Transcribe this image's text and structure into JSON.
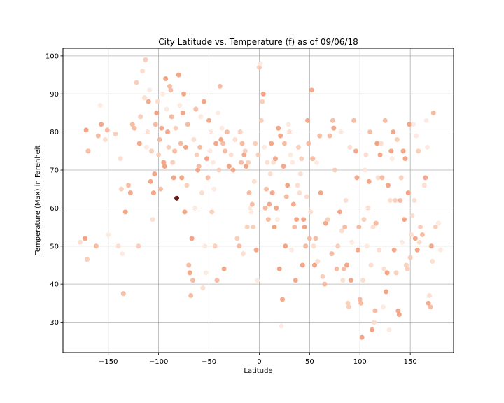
{
  "chart_data": {
    "type": "scatter",
    "title": "City Latitude vs. Temperature (f) as of 09/06/18",
    "xlabel": "Latitude",
    "ylabel": "Temperature (Max) in Farenheit",
    "xlim": [
      -195,
      193
    ],
    "ylim": [
      22,
      102
    ],
    "xticks": [
      -150,
      -100,
      -50,
      0,
      50,
      100,
      150
    ],
    "yticks": [
      30,
      40,
      50,
      60,
      70,
      80,
      90,
      100
    ],
    "grid": true,
    "highlight_point": {
      "x": -82,
      "y": 62.6,
      "color": "#6b1a1a"
    },
    "point_colors": [
      "#f4a07f",
      "#f6b59a",
      "#f8cbb5",
      "#fbdccb",
      "#fde8dd",
      "#f39b79"
    ],
    "points": [
      [
        -178,
        51
      ],
      [
        -173,
        52
      ],
      [
        -172,
        80.5
      ],
      [
        -171,
        46.5
      ],
      [
        -170,
        75
      ],
      [
        -162,
        50
      ],
      [
        -160,
        79
      ],
      [
        -158,
        87
      ],
      [
        -157,
        82
      ],
      [
        -153,
        78
      ],
      [
        -151,
        80.5
      ],
      [
        -150,
        53
      ],
      [
        -143,
        79.5
      ],
      [
        -140,
        50
      ],
      [
        -138,
        73
      ],
      [
        -137,
        65
      ],
      [
        -136,
        48
      ],
      [
        -135,
        37.5
      ],
      [
        -133,
        59
      ],
      [
        -130,
        66
      ],
      [
        -128,
        64
      ],
      [
        -126,
        82
      ],
      [
        -124,
        81
      ],
      [
        -122,
        93
      ],
      [
        -120,
        50
      ],
      [
        -119,
        77
      ],
      [
        -118,
        84
      ],
      [
        -116,
        96
      ],
      [
        -114,
        89
      ],
      [
        -113,
        99
      ],
      [
        -112,
        76
      ],
      [
        -111,
        80
      ],
      [
        -110,
        88
      ],
      [
        -109,
        91
      ],
      [
        -108,
        67
      ],
      [
        -107,
        75
      ],
      [
        -106,
        57
      ],
      [
        -105,
        64
      ],
      [
        -104,
        69
      ],
      [
        -103,
        82
      ],
      [
        -102,
        85
      ],
      [
        -101,
        88
      ],
      [
        -100,
        74
      ],
      [
        -99,
        78
      ],
      [
        -98,
        65
      ],
      [
        -97,
        81
      ],
      [
        -96,
        90
      ],
      [
        -95,
        72
      ],
      [
        -94,
        71
      ],
      [
        -93,
        94
      ],
      [
        -92,
        86
      ],
      [
        -91,
        80
      ],
      [
        -90,
        76
      ],
      [
        -89,
        92
      ],
      [
        -88,
        91
      ],
      [
        -87,
        84
      ],
      [
        -86,
        72
      ],
      [
        -85,
        68
      ],
      [
        -84,
        75
      ],
      [
        -83,
        81
      ],
      [
        -80,
        95
      ],
      [
        -79,
        87
      ],
      [
        -78,
        77
      ],
      [
        -77,
        68
      ],
      [
        -76,
        85
      ],
      [
        -75,
        90
      ],
      [
        -74,
        59
      ],
      [
        -73,
        76
      ],
      [
        -72,
        66
      ],
      [
        -71,
        82
      ],
      [
        -70,
        45
      ],
      [
        -69,
        43
      ],
      [
        -68,
        37
      ],
      [
        -67,
        52
      ],
      [
        -66,
        41
      ],
      [
        -65,
        78
      ],
      [
        -64,
        60
      ],
      [
        -63,
        86
      ],
      [
        -62,
        74
      ],
      [
        -61,
        70
      ],
      [
        -60,
        71
      ],
      [
        -59,
        76
      ],
      [
        -58,
        84
      ],
      [
        -57,
        64
      ],
      [
        -56,
        39
      ],
      [
        -55,
        88
      ],
      [
        -54,
        50
      ],
      [
        -53,
        43
      ],
      [
        -52,
        73
      ],
      [
        -51,
        68
      ],
      [
        -50,
        83
      ],
      [
        -49,
        75
      ],
      [
        -48,
        80
      ],
      [
        -47,
        59
      ],
      [
        -46,
        72
      ],
      [
        -45,
        65
      ],
      [
        -44,
        50
      ],
      [
        -43,
        77
      ],
      [
        -42,
        41
      ],
      [
        -41,
        85
      ],
      [
        -40,
        70
      ],
      [
        -39,
        92
      ],
      [
        -38,
        78
      ],
      [
        -37,
        81
      ],
      [
        -36,
        77
      ],
      [
        -35,
        44
      ],
      [
        -34,
        75
      ],
      [
        -32,
        80
      ],
      [
        -30,
        71
      ],
      [
        -28,
        74
      ],
      [
        -26,
        70
      ],
      [
        -24,
        78
      ],
      [
        -22,
        52
      ],
      [
        -20,
        50
      ],
      [
        -19,
        80
      ],
      [
        -18,
        72
      ],
      [
        -17,
        77
      ],
      [
        -16,
        48
      ],
      [
        -15,
        74
      ],
      [
        -14,
        75
      ],
      [
        -13,
        71
      ],
      [
        -12,
        55
      ],
      [
        -11,
        72
      ],
      [
        -10,
        64
      ],
      [
        -9,
        60
      ],
      [
        -8,
        59
      ],
      [
        -7,
        61
      ],
      [
        -6,
        55
      ],
      [
        -5,
        67
      ],
      [
        -4,
        77
      ],
      [
        -3,
        49
      ],
      [
        -2,
        41
      ],
      [
        -1,
        74
      ],
      [
        0,
        97
      ],
      [
        1,
        98
      ],
      [
        2,
        83
      ],
      [
        3,
        88
      ],
      [
        4,
        90
      ],
      [
        5,
        76
      ],
      [
        6,
        60
      ],
      [
        7,
        65
      ],
      [
        8,
        72
      ],
      [
        9,
        57
      ],
      [
        10,
        61
      ],
      [
        11,
        69
      ],
      [
        12,
        77
      ],
      [
        13,
        64
      ],
      [
        14,
        72
      ],
      [
        15,
        55
      ],
      [
        16,
        73
      ],
      [
        17,
        60
      ],
      [
        18,
        57
      ],
      [
        19,
        81
      ],
      [
        20,
        44
      ],
      [
        21,
        79
      ],
      [
        22,
        29
      ],
      [
        23,
        36
      ],
      [
        24,
        71
      ],
      [
        25,
        77
      ],
      [
        26,
        50
      ],
      [
        27,
        63
      ],
      [
        28,
        66
      ],
      [
        29,
        82
      ],
      [
        30,
        80
      ],
      [
        31,
        74
      ],
      [
        32,
        49
      ],
      [
        33,
        72
      ],
      [
        34,
        61
      ],
      [
        35,
        55
      ],
      [
        36,
        41
      ],
      [
        37,
        57
      ],
      [
        38,
        66
      ],
      [
        39,
        76
      ],
      [
        40,
        64
      ],
      [
        41,
        69
      ],
      [
        42,
        73
      ],
      [
        43,
        45
      ],
      [
        44,
        57
      ],
      [
        45,
        55
      ],
      [
        46,
        50
      ],
      [
        47,
        63
      ],
      [
        48,
        83
      ],
      [
        49,
        77
      ],
      [
        50,
        52
      ],
      [
        51,
        59
      ],
      [
        52,
        91
      ],
      [
        53,
        73
      ],
      [
        54,
        50
      ],
      [
        55,
        45
      ],
      [
        56,
        52
      ],
      [
        57,
        72
      ],
      [
        58,
        46
      ],
      [
        60,
        79
      ],
      [
        61,
        64
      ],
      [
        63,
        42
      ],
      [
        65,
        40
      ],
      [
        66,
        56
      ],
      [
        68,
        57
      ],
      [
        70,
        79
      ],
      [
        72,
        48
      ],
      [
        73,
        83
      ],
      [
        74,
        81
      ],
      [
        75,
        70
      ],
      [
        77,
        44
      ],
      [
        78,
        50
      ],
      [
        80,
        59
      ],
      [
        81,
        80
      ],
      [
        82,
        54
      ],
      [
        83,
        41
      ],
      [
        84,
        44
      ],
      [
        85,
        55
      ],
      [
        86,
        62
      ],
      [
        87,
        45
      ],
      [
        88,
        35
      ],
      [
        89,
        34
      ],
      [
        90,
        76
      ],
      [
        91,
        41
      ],
      [
        92,
        51
      ],
      [
        94,
        83
      ],
      [
        96,
        75
      ],
      [
        97,
        68
      ],
      [
        98,
        49
      ],
      [
        99,
        55
      ],
      [
        100,
        36
      ],
      [
        101,
        35
      ],
      [
        102,
        26
      ],
      [
        103,
        41
      ],
      [
        104,
        57
      ],
      [
        105,
        70
      ],
      [
        106,
        74
      ],
      [
        107,
        50
      ],
      [
        108,
        60
      ],
      [
        109,
        67
      ],
      [
        110,
        80
      ],
      [
        111,
        45
      ],
      [
        112,
        28
      ],
      [
        113,
        55
      ],
      [
        114,
        30
      ],
      [
        115,
        33
      ],
      [
        116,
        56
      ],
      [
        117,
        77
      ],
      [
        118,
        68
      ],
      [
        119,
        49
      ],
      [
        120,
        74
      ],
      [
        121,
        77
      ],
      [
        122,
        68
      ],
      [
        123,
        34
      ],
      [
        124,
        44
      ],
      [
        125,
        83
      ],
      [
        126,
        38
      ],
      [
        127,
        43
      ],
      [
        128,
        66
      ],
      [
        129,
        28
      ],
      [
        130,
        62
      ],
      [
        131,
        75
      ],
      [
        132,
        73
      ],
      [
        133,
        80
      ],
      [
        134,
        49
      ],
      [
        135,
        62
      ],
      [
        136,
        43
      ],
      [
        137,
        78
      ],
      [
        138,
        33
      ],
      [
        139,
        32
      ],
      [
        140,
        62
      ],
      [
        141,
        68
      ],
      [
        142,
        51
      ],
      [
        143,
        75
      ],
      [
        144,
        57
      ],
      [
        145,
        73
      ],
      [
        146,
        45
      ],
      [
        147,
        44
      ],
      [
        148,
        64
      ],
      [
        149,
        82
      ],
      [
        150,
        47
      ],
      [
        151,
        53
      ],
      [
        152,
        58
      ],
      [
        153,
        82
      ],
      [
        154,
        62
      ],
      [
        155,
        52
      ],
      [
        156,
        79
      ],
      [
        157,
        49
      ],
      [
        158,
        75
      ],
      [
        159,
        51
      ],
      [
        160,
        55
      ],
      [
        162,
        53
      ],
      [
        164,
        66
      ],
      [
        165,
        68
      ],
      [
        166,
        83
      ],
      [
        167,
        76
      ],
      [
        168,
        35
      ],
      [
        169,
        37
      ],
      [
        170,
        34
      ],
      [
        171,
        50
      ],
      [
        172,
        46
      ],
      [
        173,
        85
      ],
      [
        175,
        55
      ],
      [
        178,
        56
      ],
      [
        180,
        49
      ]
    ]
  }
}
